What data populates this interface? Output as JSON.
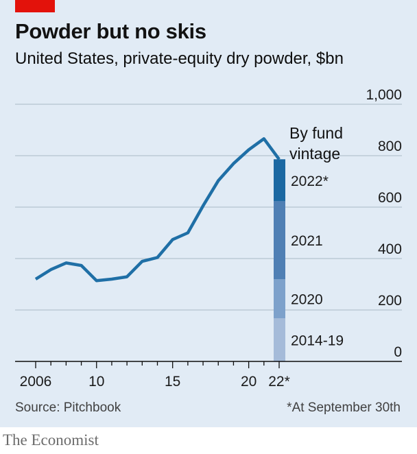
{
  "header": {
    "title": "Powder but no skis",
    "subtitle": "United States, private-equity dry powder, $bn"
  },
  "footer": {
    "source": "Source: Pitchbook",
    "note": "*At September 30th",
    "brand": "The Economist"
  },
  "colors": {
    "background": "#e1ebf5",
    "line": "#1f6fa6",
    "accent_red": "#e3120b",
    "grid": "#b5c2cf"
  },
  "chart_data": {
    "type": "line",
    "title": "Powder but no skis",
    "ylim": [
      0,
      1000
    ],
    "y_ticks": [
      0,
      200,
      400,
      600,
      800,
      1000
    ],
    "y_tick_labels": [
      "0",
      "200",
      "400",
      "600",
      "800",
      "1,000"
    ],
    "x_ticks": [
      2006,
      2010,
      2015,
      2020,
      2022
    ],
    "x_tick_labels": [
      "2006",
      "10",
      "15",
      "20",
      "22*"
    ],
    "grid": true,
    "series": [
      {
        "x": [
          2006,
          2007,
          2008,
          2009,
          2010,
          2011,
          2012,
          2013,
          2014,
          2015,
          2016,
          2017,
          2018,
          2019,
          2020,
          2021,
          2022
        ],
        "values": [
          320,
          357,
          383,
          373,
          314,
          320,
          329,
          389,
          404,
          474,
          500,
          605,
          703,
          769,
          823,
          866,
          786
        ]
      }
    ],
    "stack": {
      "title_lines": [
        "By fund",
        "vintage"
      ],
      "segments": [
        {
          "label": "2014-19",
          "value": 168,
          "color": "#a5bbd9"
        },
        {
          "label": "2020",
          "value": 152,
          "color": "#7da1cb"
        },
        {
          "label": "2021",
          "value": 303,
          "color": "#4f7fb4"
        },
        {
          "label": "2022*",
          "value": 163,
          "color": "#1b68a2"
        }
      ]
    }
  }
}
